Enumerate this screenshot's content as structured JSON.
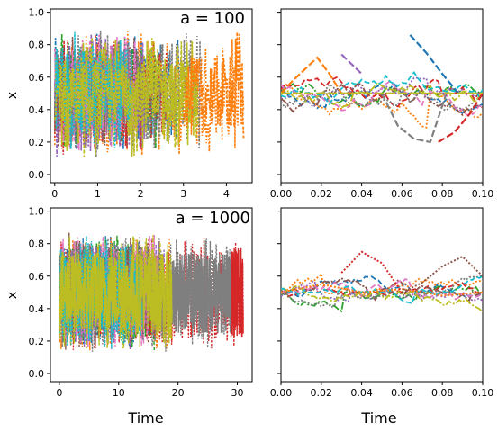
{
  "chart_data": [
    {
      "type": "line",
      "title": "",
      "annotation": "a = 100",
      "xlabel": "",
      "ylabel": "x",
      "xlim": [
        -0.1,
        4.6
      ],
      "ylim": [
        -0.05,
        1.02
      ],
      "xticks": [
        "0",
        "1",
        "2",
        "3",
        "4"
      ],
      "yticks": [
        "0.0",
        "0.2",
        "0.4",
        "0.6",
        "0.8",
        "1.0"
      ],
      "grid": false,
      "series_colors": [
        "#1f77b4",
        "#ff7f0e",
        "#2ca02c",
        "#d62728",
        "#9467bd",
        "#8c564b",
        "#e377c2",
        "#7f7f7f",
        "#bcbd22",
        "#17becf"
      ],
      "series": [
        {
          "x": [
            0,
            0.5,
            1.0,
            1.5,
            2.0,
            2.5,
            3.0,
            3.5,
            4.0,
            4.4
          ],
          "y": [
            0.5,
            0.72,
            0.3,
            0.6,
            0.45,
            0.8,
            0.4,
            0.55,
            0.35,
            0.1
          ]
        }
      ]
    },
    {
      "type": "line",
      "title": "",
      "xlabel": "",
      "ylabel": "",
      "xlim": [
        0.0,
        0.1
      ],
      "ylim": [
        -0.05,
        1.02
      ],
      "xticks": [
        "0.00",
        "0.02",
        "0.04",
        "0.06",
        "0.08",
        "0.10"
      ],
      "yticks": [],
      "grid": false,
      "series": [
        {
          "x": [
            0.0,
            0.006,
            0.012,
            0.018,
            0.024,
            0.03,
            0.036
          ],
          "y": [
            0.5,
            0.58,
            0.65,
            0.72,
            0.62,
            0.5,
            0.5
          ]
        },
        {
          "x": [
            0.03,
            0.04
          ],
          "y": [
            0.74,
            0.62
          ]
        },
        {
          "x": [
            0.05,
            0.058,
            0.066,
            0.074,
            0.082
          ],
          "y": [
            0.5,
            0.3,
            0.22,
            0.2,
            0.5
          ]
        },
        {
          "x": [
            0.064,
            0.072,
            0.08,
            0.088
          ],
          "y": [
            0.86,
            0.75,
            0.62,
            0.5
          ]
        },
        {
          "x": [
            0.078,
            0.086,
            0.094,
            0.1
          ],
          "y": [
            0.2,
            0.26,
            0.38,
            0.5
          ]
        }
      ]
    },
    {
      "type": "line",
      "title": "",
      "annotation": "a = 1000",
      "xlabel": "Time",
      "ylabel": "x",
      "xlim": [
        -1.5,
        32.5
      ],
      "ylim": [
        -0.05,
        1.02
      ],
      "xticks": [
        "0",
        "10",
        "20",
        "30"
      ],
      "yticks": [
        "0.0",
        "0.2",
        "0.4",
        "0.6",
        "0.8",
        "1.0"
      ],
      "grid": false,
      "series": [
        {
          "x": [
            0,
            5,
            10,
            15,
            19
          ],
          "y": [
            0.5,
            0.52,
            0.49,
            0.51,
            0.5
          ]
        },
        {
          "x": [
            19,
            23,
            27,
            29
          ],
          "y": [
            0.5,
            0.51,
            0.49,
            0.5
          ]
        },
        {
          "x": [
            29,
            30,
            31
          ],
          "y": [
            0.5,
            0.52,
            0.49
          ]
        }
      ]
    },
    {
      "type": "line",
      "title": "",
      "xlabel": "Time",
      "ylabel": "",
      "xlim": [
        0.0,
        0.1
      ],
      "ylim": [
        -0.05,
        1.02
      ],
      "xticks": [
        "0.00",
        "0.02",
        "0.04",
        "0.06",
        "0.08",
        "0.10"
      ],
      "yticks": [],
      "grid": false,
      "series": [
        {
          "x": [
            0.0,
            0.02,
            0.04,
            0.06,
            0.08,
            0.1
          ],
          "y": [
            0.5,
            0.55,
            0.5,
            0.52,
            0.48,
            0.5
          ]
        },
        {
          "x": [
            0.03,
            0.04,
            0.05,
            0.06
          ],
          "y": [
            0.62,
            0.75,
            0.68,
            0.5
          ]
        },
        {
          "x": [
            0.06,
            0.07,
            0.08,
            0.09,
            0.1
          ],
          "y": [
            0.5,
            0.56,
            0.66,
            0.72,
            0.6
          ]
        }
      ]
    }
  ]
}
